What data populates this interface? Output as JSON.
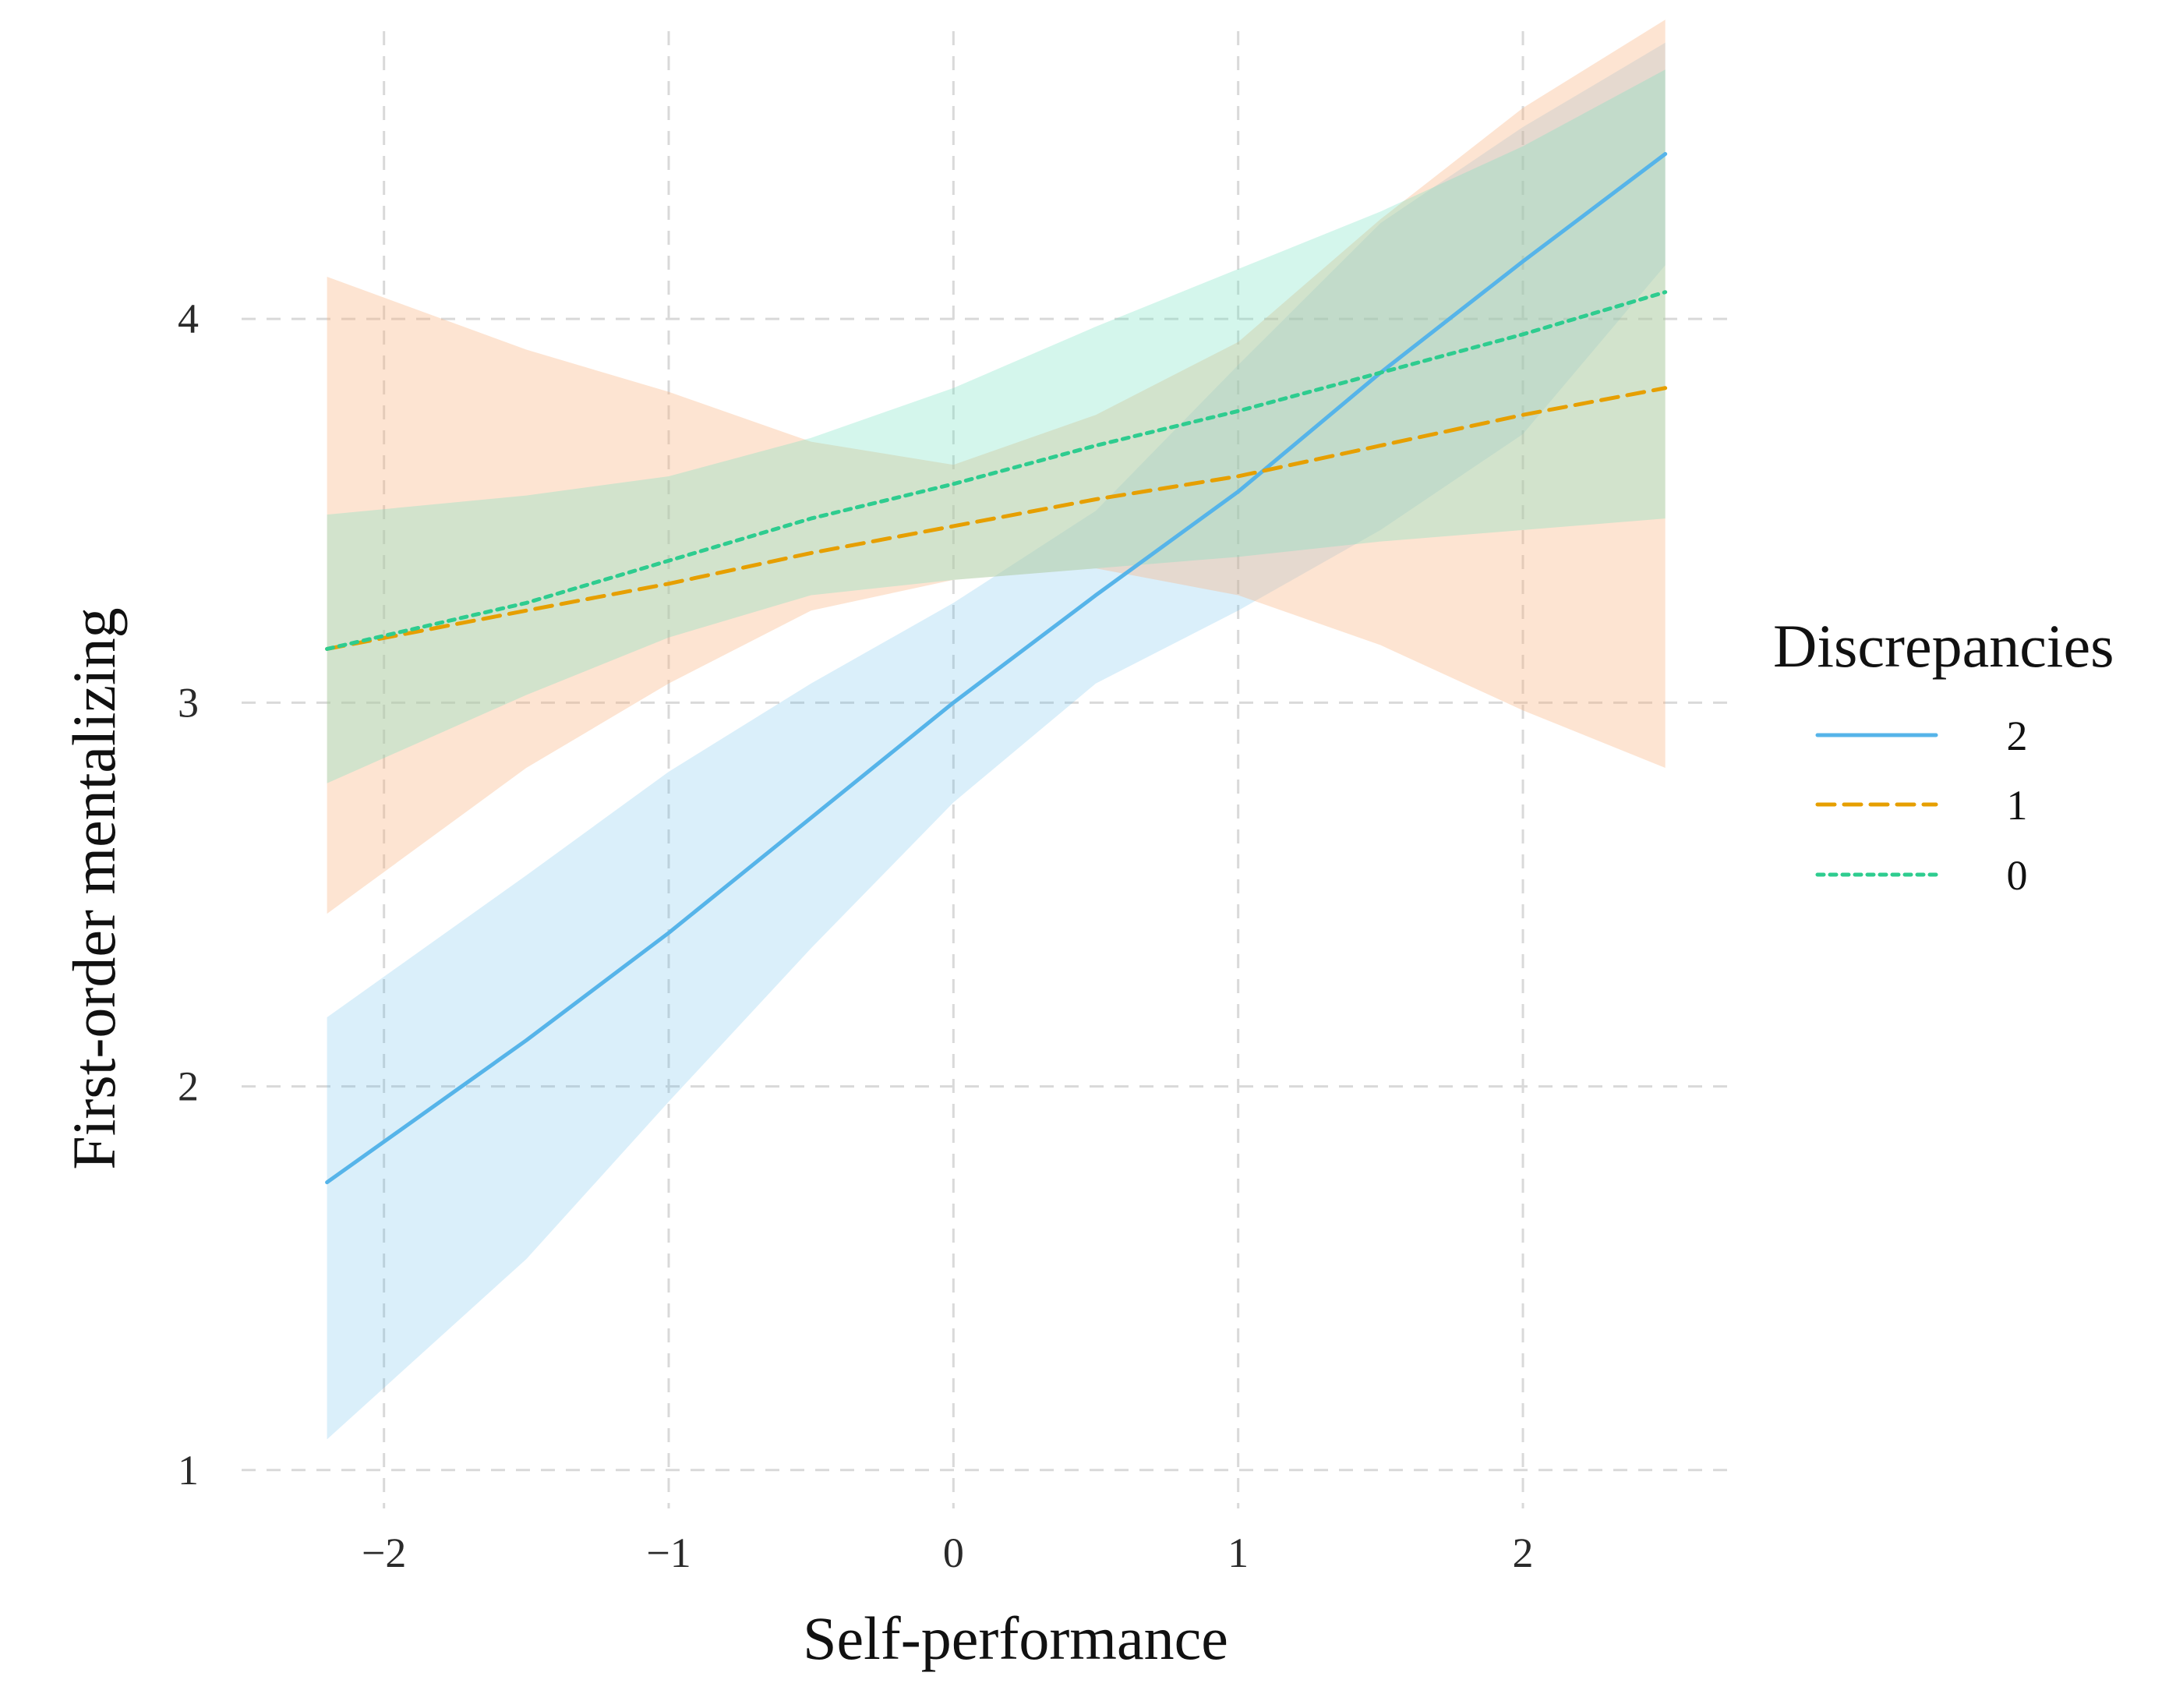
{
  "chart_data": {
    "type": "line",
    "title": "",
    "xlabel": "Self-performance",
    "ylabel": "First-order mentalizing",
    "xlim": [
      -2.5,
      2.75
    ],
    "ylim": [
      0.9,
      4.75
    ],
    "x_ticks": [
      -2,
      -1,
      0,
      1,
      2
    ],
    "x_tick_labels": [
      "−2",
      "−1",
      "0",
      "1",
      "2"
    ],
    "y_ticks": [
      1,
      2,
      3,
      4
    ],
    "y_tick_labels": [
      "1",
      "2",
      "3",
      "4"
    ],
    "grid": true,
    "legend": {
      "title": "Discrepancies",
      "position": "right"
    },
    "series": [
      {
        "name": "2",
        "color": "#56b4e9",
        "fill_color": "#56b4e9",
        "fill_opacity": 0.22,
        "line_style": "solid",
        "x": [
          -2.2,
          -1.5,
          -1.0,
          -0.5,
          0.0,
          0.5,
          1.0,
          1.5,
          2.0,
          2.5
        ],
        "y": [
          1.75,
          2.12,
          2.4,
          2.7,
          3.0,
          3.28,
          3.55,
          3.86,
          4.15,
          4.43
        ],
        "lower": [
          1.08,
          1.55,
          1.96,
          2.36,
          2.74,
          3.05,
          3.24,
          3.45,
          3.7,
          4.14
        ],
        "upper": [
          2.18,
          2.55,
          2.82,
          3.05,
          3.26,
          3.5,
          3.88,
          4.25,
          4.5,
          4.72
        ]
      },
      {
        "name": "1",
        "color": "#e69f00",
        "fill_color": "#f8b37d",
        "fill_opacity": 0.35,
        "line_style": "dashed",
        "x": [
          -2.2,
          -1.5,
          -1.0,
          -0.5,
          0.0,
          0.5,
          1.0,
          1.5,
          2.0,
          2.5
        ],
        "y": [
          3.14,
          3.24,
          3.31,
          3.39,
          3.46,
          3.53,
          3.59,
          3.67,
          3.75,
          3.82
        ],
        "lower": [
          2.45,
          2.83,
          3.05,
          3.24,
          3.32,
          3.35,
          3.28,
          3.15,
          2.98,
          2.83
        ],
        "upper": [
          4.11,
          3.92,
          3.81,
          3.68,
          3.62,
          3.75,
          3.94,
          4.26,
          4.55,
          4.78
        ]
      },
      {
        "name": "0",
        "color": "#2ecc8f",
        "fill_color": "#72e0bf",
        "fill_opacity": 0.3,
        "line_style": "dotted",
        "x": [
          -2.2,
          -1.5,
          -1.0,
          -0.5,
          0.0,
          0.5,
          1.0,
          1.5,
          2.0,
          2.5
        ],
        "y": [
          3.14,
          3.26,
          3.37,
          3.48,
          3.57,
          3.67,
          3.76,
          3.86,
          3.96,
          4.07
        ],
        "lower": [
          2.79,
          3.02,
          3.17,
          3.28,
          3.32,
          3.35,
          3.38,
          3.42,
          3.45,
          3.48
        ],
        "upper": [
          3.49,
          3.54,
          3.59,
          3.69,
          3.82,
          3.98,
          4.13,
          4.28,
          4.45,
          4.65
        ]
      }
    ]
  }
}
